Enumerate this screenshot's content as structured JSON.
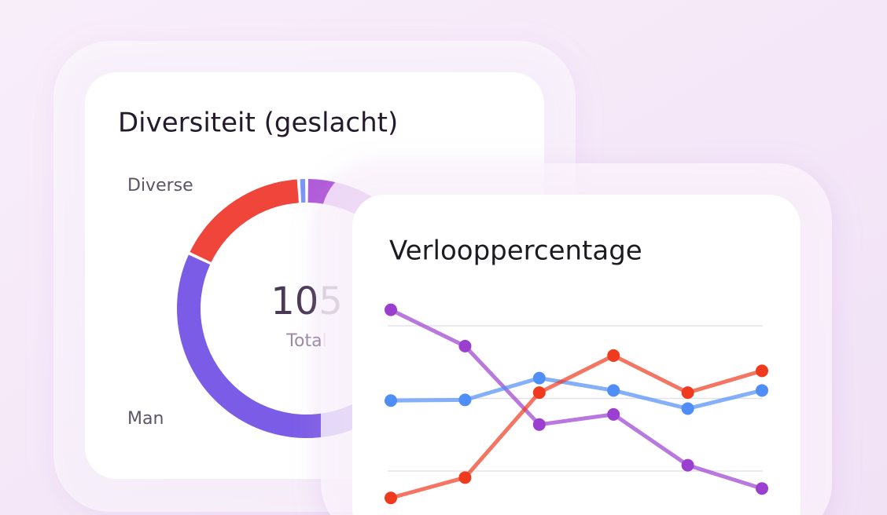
{
  "chart_data": [
    {
      "type": "donut",
      "title": "Diversiteit (geslacht)",
      "center_value": "105",
      "center_label": "Total",
      "categories": [
        null,
        "Man",
        "Diverse",
        null
      ],
      "values": [
        42,
        40,
        17,
        1
      ],
      "colors": [
        "#b05ad8",
        "#7b5ce6",
        "#f0453a",
        "#7b94f5"
      ]
    },
    {
      "type": "line",
      "title": "Verlooppercentage",
      "categories": [
        null,
        null,
        null,
        null,
        null,
        null
      ],
      "ylim": [
        1,
        3
      ],
      "yticks": [
        1,
        2,
        3
      ],
      "grid": true,
      "series": [
        {
          "color": "#9b3fd0",
          "values": [
            3.22,
            2.72,
            1.64,
            1.78,
            1.08,
            0.76
          ]
        },
        {
          "color": "#4f8ef7",
          "values": [
            1.97,
            1.98,
            2.28,
            2.11,
            1.86,
            2.11
          ]
        },
        {
          "color": "#f03a1f",
          "values": [
            0.63,
            0.91,
            2.08,
            2.59,
            2.08,
            2.38
          ]
        }
      ]
    }
  ]
}
